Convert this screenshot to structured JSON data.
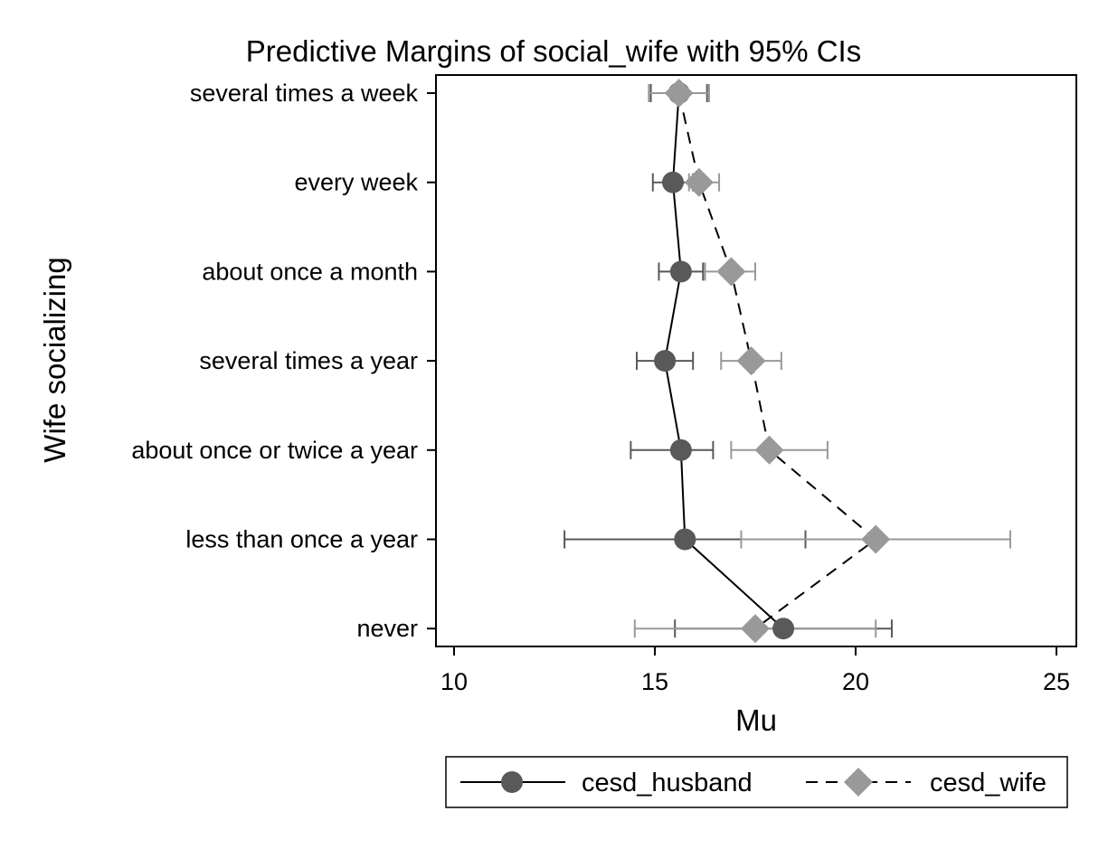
{
  "chart_data": {
    "type": "scatter",
    "title": "Predictive Margins of social_wife with 95% CIs",
    "xlabel": "Mu",
    "ylabel": "Wife socializing",
    "xlim": [
      10,
      25
    ],
    "xticks": [
      10,
      15,
      20,
      25
    ],
    "categories": [
      "several times a week",
      "every week",
      "about once a month",
      "several times a year",
      "about once or twice a year",
      "less than once a year",
      "never"
    ],
    "grid": false,
    "legend_position": "bottom",
    "series": [
      {
        "name": "cesd_husband",
        "marker": "circle",
        "line": "solid",
        "color": "#595959",
        "ci_color": "#595959",
        "values": [
          15.6,
          15.45,
          15.65,
          15.25,
          15.65,
          15.75,
          18.2
        ],
        "ci_low": [
          14.9,
          14.95,
          15.1,
          14.55,
          14.4,
          12.75,
          15.5
        ],
        "ci_high": [
          16.3,
          15.95,
          16.2,
          15.95,
          16.45,
          18.75,
          20.9
        ]
      },
      {
        "name": "cesd_wife",
        "marker": "diamond",
        "line": "dashed",
        "color": "#999999",
        "ci_color": "#999999",
        "values": [
          15.6,
          16.1,
          16.9,
          17.4,
          17.85,
          20.5,
          17.5
        ],
        "ci_low": [
          14.85,
          15.85,
          16.25,
          16.65,
          16.9,
          17.15,
          14.5
        ],
        "ci_high": [
          16.35,
          16.6,
          17.5,
          18.15,
          19.3,
          23.85,
          20.5
        ]
      }
    ]
  }
}
